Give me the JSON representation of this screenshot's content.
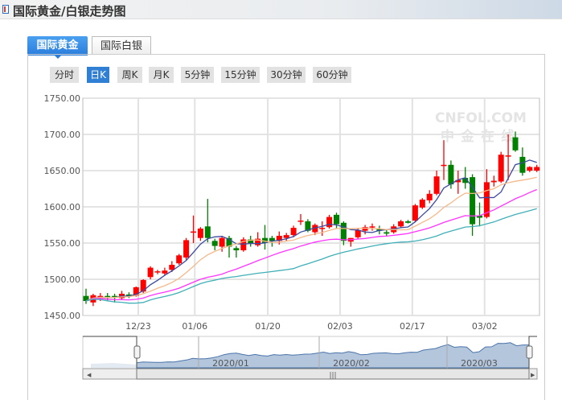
{
  "header": {
    "title": "国际黄金/白银走势图",
    "icon": "chart-book-icon"
  },
  "tabs": [
    {
      "label": "国际黄金",
      "active": true
    },
    {
      "label": "国际白银",
      "active": false
    }
  ],
  "periods": [
    {
      "label": "分时"
    },
    {
      "label": "日K",
      "active": true
    },
    {
      "label": "周K"
    },
    {
      "label": "月K"
    },
    {
      "label": "5分钟"
    },
    {
      "label": "15分钟"
    },
    {
      "label": "30分钟"
    },
    {
      "label": "60分钟"
    }
  ],
  "watermark": {
    "line1": "CNFOL.COM",
    "line2": "中金在线"
  },
  "colors": {
    "up": "#ff0000",
    "down": "#008000",
    "ma5": "#3a4aa0",
    "ma10": "#f5b98a",
    "ma20": "#ff33ff",
    "ma30": "#40b0b8",
    "accent": "#2f7fd4"
  },
  "chart_data": {
    "type": "candlestick",
    "ylim": [
      1450,
      1750
    ],
    "yticks": [
      "1750.00",
      "1700.00",
      "1650.00",
      "1600.00",
      "1550.00",
      "1500.00",
      "1450.00"
    ],
    "xticks": [
      {
        "label": "12/23",
        "at_candle": 7.3
      },
      {
        "label": "01/06",
        "at_candle": 15.2
      },
      {
        "label": "01/20",
        "at_candle": 25.4
      },
      {
        "label": "02/03",
        "at_candle": 35.5
      },
      {
        "label": "02/17",
        "at_candle": 45.6
      },
      {
        "label": "03/02",
        "at_candle": 55.7
      }
    ],
    "moving_averages": [
      5,
      10,
      20,
      30
    ],
    "ohlc": [
      [
        1477,
        1487,
        1466,
        1470
      ],
      [
        1468,
        1480,
        1463,
        1478
      ],
      [
        1474,
        1481,
        1470,
        1477
      ],
      [
        1477,
        1481,
        1471,
        1474
      ],
      [
        1477,
        1480,
        1468,
        1475
      ],
      [
        1474,
        1484,
        1472,
        1480
      ],
      [
        1479,
        1482,
        1474,
        1478
      ],
      [
        1477,
        1490,
        1476,
        1489
      ],
      [
        1483,
        1500,
        1481,
        1499
      ],
      [
        1503,
        1518,
        1500,
        1516
      ],
      [
        1510,
        1513,
        1507,
        1511
      ],
      [
        1508,
        1516,
        1506,
        1512
      ],
      [
        1513,
        1525,
        1510,
        1520
      ],
      [
        1522,
        1535,
        1520,
        1533
      ],
      [
        1530,
        1557,
        1527,
        1554
      ],
      [
        1566,
        1588,
        1550,
        1566
      ],
      [
        1557,
        1572,
        1553,
        1570
      ],
      [
        1573,
        1611,
        1551,
        1557
      ],
      [
        1553,
        1556,
        1540,
        1546
      ],
      [
        1545,
        1560,
        1538,
        1557
      ],
      [
        1557,
        1560,
        1530,
        1545
      ],
      [
        1543,
        1546,
        1530,
        1540
      ],
      [
        1540,
        1558,
        1538,
        1555
      ],
      [
        1555,
        1560,
        1545,
        1550
      ],
      [
        1547,
        1565,
        1545,
        1556
      ],
      [
        1557,
        1575,
        1541,
        1550
      ],
      [
        1557,
        1560,
        1545,
        1553
      ],
      [
        1553,
        1566,
        1548,
        1560
      ],
      [
        1557,
        1564,
        1553,
        1561
      ],
      [
        1561,
        1574,
        1558,
        1571
      ],
      [
        1581,
        1590,
        1575,
        1581
      ],
      [
        1580,
        1583,
        1565,
        1567
      ],
      [
        1565,
        1577,
        1561,
        1575
      ],
      [
        1570,
        1580,
        1560,
        1571
      ],
      [
        1572,
        1589,
        1570,
        1586
      ],
      [
        1589,
        1592,
        1570,
        1576
      ],
      [
        1578,
        1580,
        1547,
        1553
      ],
      [
        1552,
        1557,
        1545,
        1557
      ],
      [
        1558,
        1570,
        1555,
        1568
      ],
      [
        1567,
        1575,
        1562,
        1572
      ],
      [
        1572,
        1577,
        1567,
        1573
      ],
      [
        1570,
        1574,
        1562,
        1567
      ],
      [
        1565,
        1568,
        1560,
        1563
      ],
      [
        1565,
        1576,
        1563,
        1573
      ],
      [
        1573,
        1582,
        1571,
        1580
      ],
      [
        1580,
        1582,
        1577,
        1578
      ],
      [
        1581,
        1604,
        1579,
        1602
      ],
      [
        1599,
        1612,
        1597,
        1610
      ],
      [
        1609,
        1623,
        1605,
        1618
      ],
      [
        1618,
        1650,
        1616,
        1642
      ],
      [
        1658,
        1692,
        1637,
        1658
      ],
      [
        1658,
        1664,
        1625,
        1631
      ],
      [
        1634,
        1650,
        1618,
        1637
      ],
      [
        1640,
        1655,
        1625,
        1633
      ],
      [
        1641,
        1645,
        1560,
        1576
      ],
      [
        1588,
        1606,
        1573,
        1585
      ],
      [
        1586,
        1652,
        1584,
        1634
      ],
      [
        1634,
        1643,
        1628,
        1636
      ],
      [
        1635,
        1676,
        1633,
        1672
      ],
      [
        1671,
        1700,
        1637,
        1671
      ],
      [
        1696,
        1704,
        1676,
        1678
      ],
      [
        1669,
        1682,
        1643,
        1647
      ],
      [
        1650,
        1656,
        1648,
        1655
      ],
      [
        1650,
        1658,
        1648,
        1655
      ]
    ]
  },
  "navigator": {
    "labels": [
      "2020/01",
      "2020/02",
      "2020/03"
    ]
  }
}
